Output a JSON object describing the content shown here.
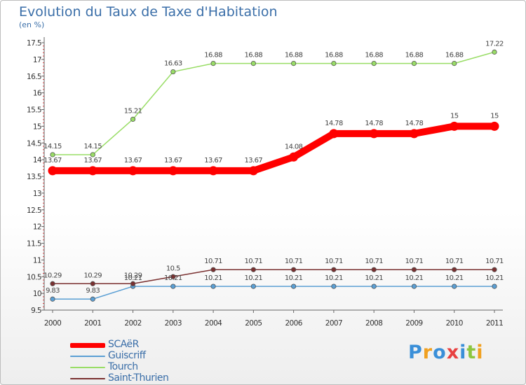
{
  "chart_data": {
    "type": "line",
    "title": "Evolution du Taux de Taxe d'Habitation",
    "subtitle": "(en %)",
    "categories": [
      "2000",
      "2001",
      "2002",
      "2003",
      "2004",
      "2005",
      "2006",
      "2007",
      "2008",
      "2009",
      "2010",
      "2011"
    ],
    "ylim": [
      9.5,
      17.5
    ],
    "yticks": [
      "9.5",
      "10",
      "10.5",
      "11",
      "11.5",
      "12",
      "12.5",
      "13",
      "13.5",
      "14",
      "14.5",
      "15",
      "15.5",
      "16",
      "16.5",
      "17",
      "17.5"
    ],
    "grid": false,
    "legend_position": "bottom-left",
    "series": [
      {
        "name": "SCAëR",
        "color": "#ff0000",
        "values": [
          13.67,
          13.67,
          13.67,
          13.67,
          13.67,
          13.67,
          14.08,
          14.78,
          14.78,
          14.78,
          15,
          15
        ],
        "labels": [
          "13.67",
          "13.67",
          "13.67",
          "13.67",
          "13.67",
          "13.67",
          "14.08",
          "14.78",
          "14.78",
          "14.78",
          "15",
          "15"
        ]
      },
      {
        "name": "Guiscriff",
        "color": "#5a9fd4",
        "values": [
          9.83,
          9.83,
          10.21,
          10.21,
          10.21,
          10.21,
          10.21,
          10.21,
          10.21,
          10.21,
          10.21,
          10.21
        ],
        "labels": [
          "9.83",
          "9.83",
          "10.21",
          "10.21",
          "10.21",
          "10.21",
          "10.21",
          "10.21",
          "10.21",
          "10.21",
          "10.21",
          "10.21"
        ]
      },
      {
        "name": "Tourch",
        "color": "#99dd66",
        "values": [
          14.15,
          14.15,
          15.21,
          16.63,
          16.88,
          16.88,
          16.88,
          16.88,
          16.88,
          16.88,
          16.88,
          17.22
        ],
        "labels": [
          "14.15",
          "14.15",
          "15.21",
          "16.63",
          "16.88",
          "16.88",
          "16.88",
          "16.88",
          "16.88",
          "16.88",
          "16.88",
          "17.22"
        ]
      },
      {
        "name": "Saint-Thurien",
        "color": "#7a3030",
        "values": [
          10.29,
          10.29,
          10.29,
          10.5,
          10.71,
          10.71,
          10.71,
          10.71,
          10.71,
          10.71,
          10.71,
          10.71
        ],
        "labels": [
          "10.29",
          "10.29",
          "10.29",
          "10.5",
          "10.71",
          "10.71",
          "10.71",
          "10.71",
          "10.71",
          "10.71",
          "10.71",
          "10.71"
        ]
      }
    ]
  },
  "legend": {
    "scaer": "SCAëR",
    "guiscriff": "Guiscriff",
    "tourch": "Tourch",
    "saint_thurien": "Saint-Thurien"
  },
  "logo": {
    "letters": [
      "P",
      "r",
      "o",
      "x",
      "i",
      "t",
      "i"
    ],
    "colors": [
      "#3a8fd8",
      "#f0a020",
      "#3a8fd8",
      "#e84040",
      "#3a8fd8",
      "#8cc63f",
      "#f0a020"
    ]
  }
}
